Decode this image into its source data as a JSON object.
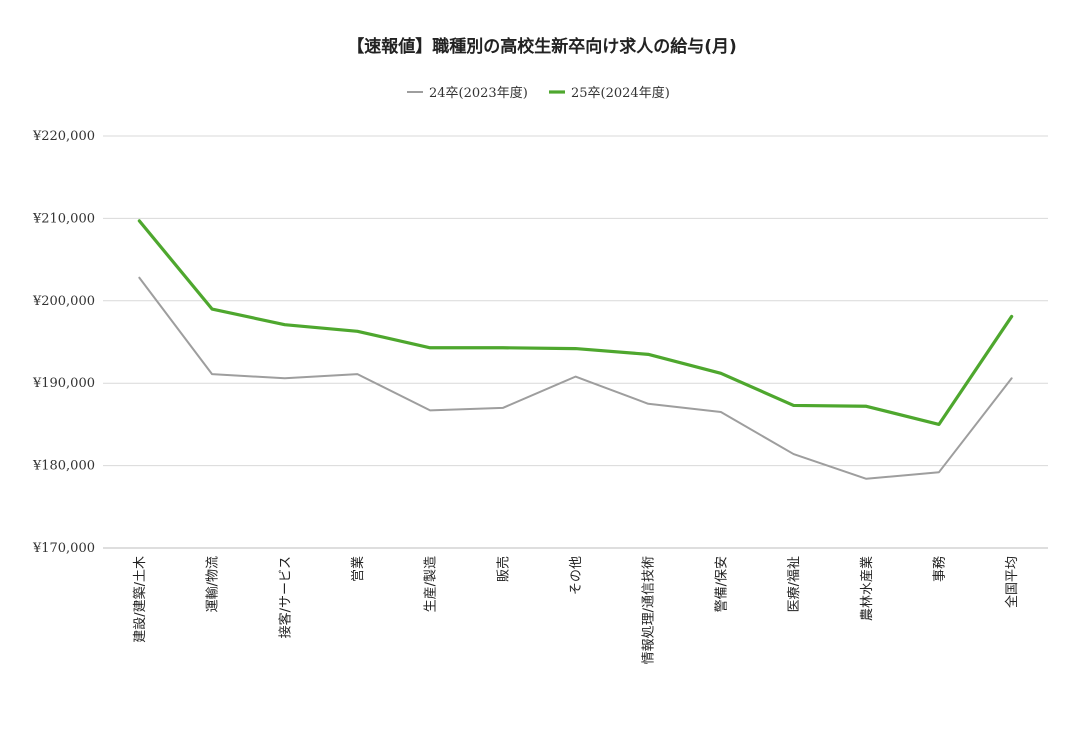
{
  "chart_data": {
    "type": "line",
    "title": "【速報値】職種別の高校生新卒向け求人の給与(月)",
    "xlabel": "",
    "ylabel": "",
    "legend_position": "top-center",
    "grid": true,
    "ylim": [
      170000,
      220000
    ],
    "yticks": [
      170000,
      180000,
      190000,
      200000,
      210000,
      220000
    ],
    "ytick_labels": [
      "¥170,000",
      "¥180,000",
      "¥190,000",
      "¥200,000",
      "¥210,000",
      "¥220,000"
    ],
    "categories": [
      "建設/建築/土木",
      "運輸/物流",
      "接客/サービス",
      "営業",
      "生産/製造",
      "販売",
      "その他",
      "情報処理/通信技術",
      "警備/保安",
      "医療/福祉",
      "農林水産業",
      "事務",
      "全国平均"
    ],
    "series": [
      {
        "name": "24卒(2023年度)",
        "color": "#9e9e9e",
        "values": [
          202800,
          191100,
          190600,
          191100,
          186700,
          187000,
          190800,
          187500,
          186500,
          181400,
          178400,
          179200,
          190600
        ]
      },
      {
        "name": "25卒(2024年度)",
        "color": "#4ea72e",
        "values": [
          209700,
          199000,
          197100,
          196300,
          194300,
          194300,
          194200,
          193500,
          191200,
          187300,
          187200,
          185000,
          198100
        ]
      }
    ]
  }
}
